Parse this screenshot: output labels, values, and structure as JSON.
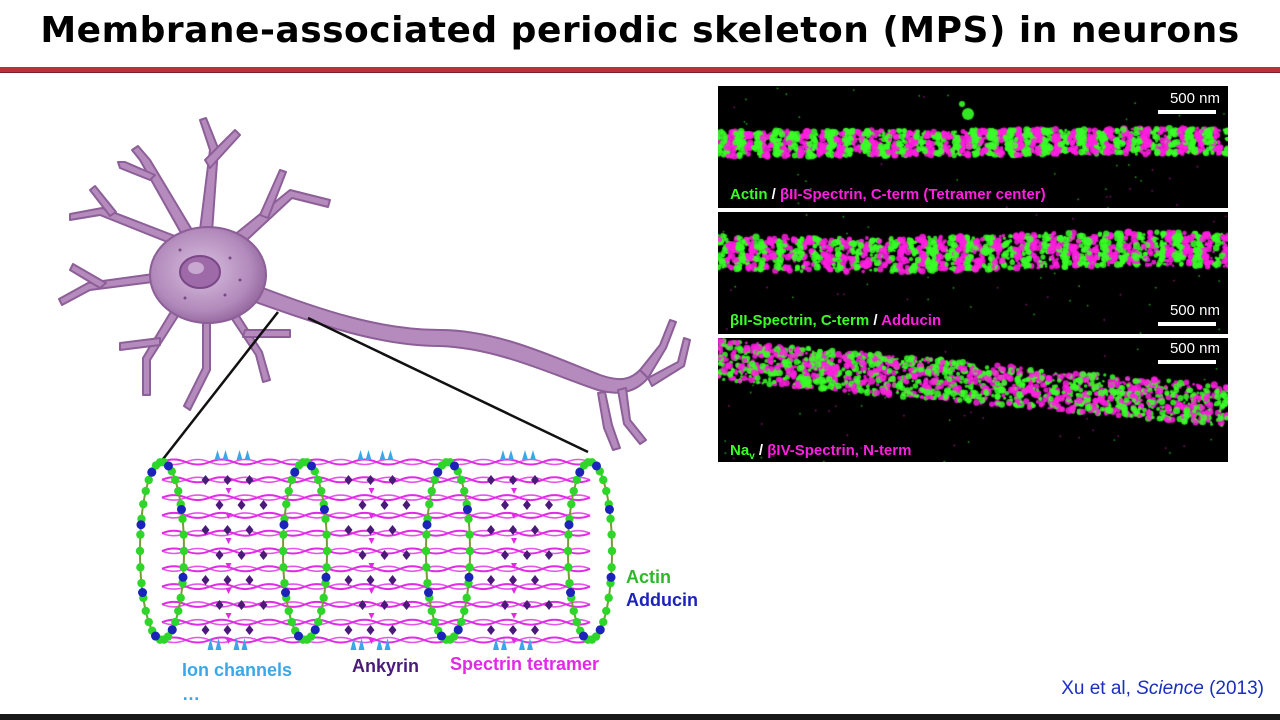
{
  "title": "Membrane-associated periodic skeleton (MPS) in neurons",
  "panels": [
    {
      "scale": "500 nm",
      "caption": [
        {
          "text": "Actin",
          "color": "green"
        },
        {
          "text": " / ",
          "color": "white"
        },
        {
          "text": "βII-Spectrin,  C-term (Tetramer center)",
          "color": "magenta"
        }
      ]
    },
    {
      "scale": "500 nm",
      "caption": [
        {
          "text": "βII-Spectrin, C-term",
          "color": "green"
        },
        {
          "text": " / ",
          "color": "white"
        },
        {
          "text": "Adducin",
          "color": "magenta"
        }
      ]
    },
    {
      "scale": "500 nm",
      "caption_nav": "Na",
      "caption_nav_sub": "v",
      "caption_rest_sep": " / ",
      "caption_rest": "βIV-Spectrin, N-term"
    }
  ],
  "labels": {
    "actin": "Actin",
    "adducin": "Adducin",
    "ion_channels": "Ion channels",
    "ellipsis": "…",
    "ankyrin": "Ankyrin",
    "spectrin": "Spectrin tetramer"
  },
  "citation": {
    "authors": "Xu et al, ",
    "journal": "Science",
    "year": " (2013)"
  },
  "colors": {
    "actin": "#2fd62a",
    "adducin": "#1c23b8",
    "spectrin": "#e02ae6",
    "ankyrin": "#4a1a78",
    "ion_channel": "#3aa8e8",
    "neuron": "#b58bbd",
    "rule": "#b8323a"
  }
}
